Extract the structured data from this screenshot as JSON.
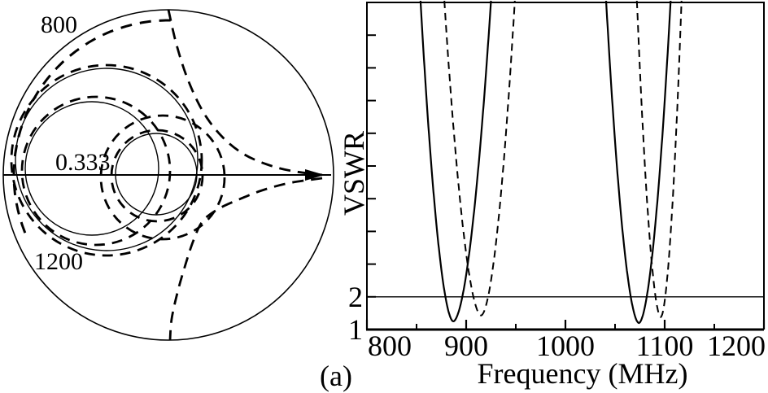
{
  "figure": {
    "panel_label": "(a)",
    "ink": "#000000",
    "background": "#ffffff"
  },
  "chart_data": [
    {
      "type": "smith",
      "title": "",
      "labels": {
        "start_freq": "800",
        "impedance_marker": "0.333",
        "stop_freq": "1200"
      },
      "outer_circle": {
        "cx": 207,
        "cy": 215,
        "r": 203
      },
      "real_axis": {
        "y": 215,
        "x1": 4,
        "x2": 407,
        "arrow_tip_x": 399
      },
      "solid_loci_circles": [
        {
          "cx": 131,
          "cy": 196,
          "r": 112
        },
        {
          "cx": 113,
          "cy": 207,
          "r": 82
        },
        {
          "cx": 192,
          "cy": 214,
          "r": 50
        }
      ],
      "dashed_loci_circles": [
        {
          "cx": 131,
          "cy": 197,
          "r": 117
        },
        {
          "cx": 118,
          "cy": 210,
          "r": 91
        },
        {
          "cx": 200,
          "cy": 218,
          "r": 76
        },
        {
          "cx": 193,
          "cy": 216,
          "r": 56
        }
      ],
      "dashed_rim_arc": {
        "cx": 207,
        "cy": 215,
        "r": 190,
        "a1": 158,
        "a2": 272
      },
      "dashed_sweep_upper": [
        [
          207,
          12
        ],
        [
          217,
          55
        ],
        [
          231,
          98
        ],
        [
          250,
          138
        ],
        [
          273,
          168
        ],
        [
          299,
          189
        ],
        [
          328,
          202
        ],
        [
          358,
          210
        ],
        [
          396,
          215
        ]
      ],
      "dashed_sweep_lower": [
        [
          396,
          219
        ],
        [
          355,
          225
        ],
        [
          322,
          234
        ],
        [
          294,
          245
        ],
        [
          268,
          257
        ],
        [
          249,
          272
        ],
        [
          238,
          295
        ],
        [
          228,
          325
        ],
        [
          218,
          360
        ],
        [
          211,
          392
        ],
        [
          209,
          418
        ]
      ]
    },
    {
      "type": "line",
      "title": "",
      "xlabel": "Frequency (MHz)",
      "ylabel": "VSWR",
      "xlim": [
        800,
        1200
      ],
      "ylim": [
        1,
        11
      ],
      "grid": false,
      "legend": "none",
      "x_major_ticks": [
        800,
        900,
        1000,
        1100,
        1200
      ],
      "x_minor_ticks": [
        850,
        950,
        1050,
        1150
      ],
      "y_ticks": [
        1,
        2,
        3,
        4,
        5,
        6,
        7,
        8,
        9,
        10
      ],
      "y_labeled_ticks": [
        1,
        2
      ],
      "reference_line_vswr": 2,
      "series": [
        {
          "name": "band1-solid",
          "style": "solid",
          "f_min": 887,
          "vswr_min": 1.25,
          "f_top_left": 854,
          "f_top_right": 925
        },
        {
          "name": "band1-dashed",
          "style": "dashed",
          "f_min": 915,
          "vswr_min": 1.43,
          "f_top_left": 878,
          "f_top_right": 949
        },
        {
          "name": "band2-solid",
          "style": "solid",
          "f_min": 1074,
          "vswr_min": 1.2,
          "f_top_left": 1041,
          "f_top_right": 1106
        },
        {
          "name": "band2-dashed",
          "style": "dashed",
          "f_min": 1096,
          "vswr_min": 1.38,
          "f_top_left": 1072,
          "f_top_right": 1117
        }
      ]
    }
  ]
}
